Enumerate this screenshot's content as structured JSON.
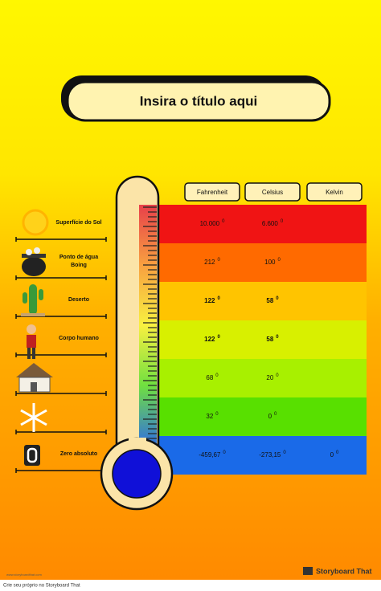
{
  "title": "Insira o título aqui",
  "table": {
    "headers": [
      "Fahrenheit",
      "Celsius",
      "Kelvin"
    ],
    "degree_mark": "0",
    "rows": [
      {
        "label": [
          "Superfície do Sol"
        ],
        "cells": [
          "10.000",
          "6.600",
          null
        ]
      },
      {
        "label": [
          "Ponto de água",
          "Boing"
        ],
        "cells": [
          "212",
          "100",
          null
        ]
      },
      {
        "label": [
          "Deserto"
        ],
        "cells": [
          "122",
          "58",
          null
        ]
      },
      {
        "label": [
          "Corpo humano"
        ],
        "cells": [
          "122",
          "58",
          null
        ]
      },
      {
        "label": null,
        "cells": [
          "68",
          "20",
          null
        ]
      },
      {
        "label": null,
        "cells": [
          "32",
          "0",
          null
        ]
      },
      {
        "label": [
          "Zero absoluto"
        ],
        "cells": [
          "-459,67",
          "-273,15",
          "0"
        ]
      }
    ]
  },
  "footer": {
    "caption": "Crie seu próprio no Storyboard That",
    "brand": "Storyboard That",
    "url": "www.storyboardthat.com"
  }
}
